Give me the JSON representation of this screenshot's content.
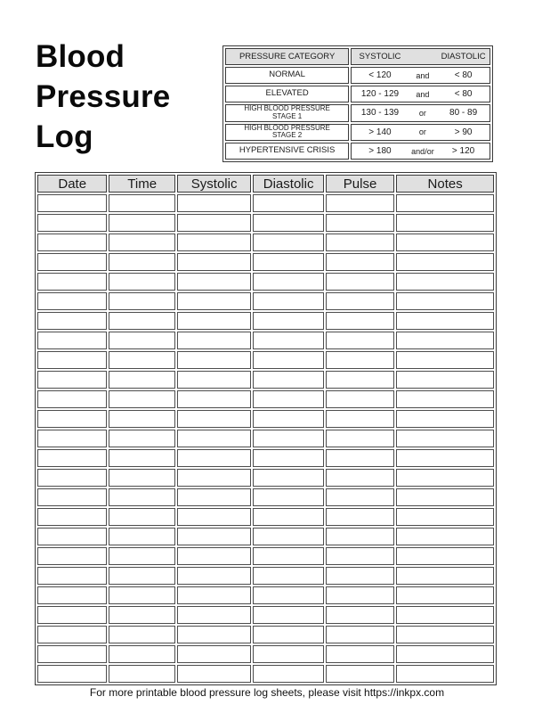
{
  "title": "Blood Pressure Log",
  "reference_table": {
    "header": {
      "category": "PRESSURE CATEGORY",
      "systolic": "SYSTOLIC",
      "diastolic": "DIASTOLIC"
    },
    "rows": [
      {
        "category_lines": [
          "NORMAL"
        ],
        "systolic": "< 120",
        "connector": "and",
        "diastolic": "< 80"
      },
      {
        "category_lines": [
          "ELEVATED"
        ],
        "systolic": "120 - 129",
        "connector": "and",
        "diastolic": "< 80"
      },
      {
        "category_lines": [
          "HIGH BLOOD PRESSURE",
          "STAGE 1"
        ],
        "systolic": "130 - 139",
        "connector": "or",
        "diastolic": "80 - 89"
      },
      {
        "category_lines": [
          "HIGH BLOOD PRESSURE",
          "STAGE 2"
        ],
        "systolic": "> 140",
        "connector": "or",
        "diastolic": "> 90"
      },
      {
        "category_lines": [
          "HYPERTENSIVE CRISIS"
        ],
        "systolic": "> 180",
        "connector": "and/or",
        "diastolic": "> 120"
      }
    ]
  },
  "log_table": {
    "columns": [
      "Date",
      "Time",
      "Systolic",
      "Diastolic",
      "Pulse",
      "Notes"
    ],
    "column_widths_pct": [
      15.6,
      14.8,
      16.6,
      15.8,
      15.4,
      21.8
    ],
    "empty_row_count": 25
  },
  "footer_text": "For more printable blood pressure log sheets, please visit https://inkpx.com",
  "colors": {
    "header_bg": "#e0e0e0",
    "table_border": "#3a3a3a",
    "grid_border": "#4d4d4d",
    "text": "#1a1a1a",
    "page_bg": "#ffffff"
  }
}
